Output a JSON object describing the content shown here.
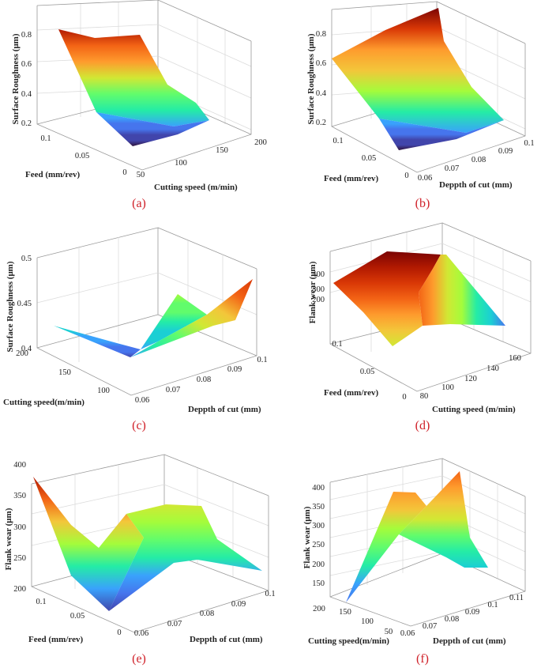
{
  "chart_data": [
    {
      "type": "surface",
      "caption": "(a)",
      "zlabel": "Surface Roughness (μm)",
      "xlabel": "Feed (mm/rev)",
      "ylabel": "Cutting speed (m/min)",
      "x_ticks": [
        "0",
        "0.05",
        "0.1"
      ],
      "y_ticks": [
        "50",
        "100",
        "150",
        "200"
      ],
      "z_ticks": [
        "0.2",
        "0.4",
        "0.6",
        "0.8"
      ],
      "xlim": [
        0,
        0.12
      ],
      "ylim": [
        50,
        200
      ],
      "zlim": [
        0.15,
        0.9
      ],
      "colormap": "turbo"
    },
    {
      "type": "surface",
      "caption": "(b)",
      "zlabel": "Surface Roughness (μm)",
      "xlabel": "Feed (mm/rev)",
      "ylabel": "Deppth of cut (mm)",
      "x_ticks": [
        "0",
        "0.05",
        "0.1"
      ],
      "y_ticks": [
        "0.06",
        "0.07",
        "0.08",
        "0.09",
        "0.1"
      ],
      "z_ticks": [
        "0.2",
        "0.4",
        "0.6",
        "0.8"
      ],
      "xlim": [
        0,
        0.12
      ],
      "ylim": [
        0.06,
        0.1
      ],
      "zlim": [
        0.15,
        0.9
      ],
      "colormap": "turbo"
    },
    {
      "type": "surface",
      "caption": "(c)",
      "zlabel": "Surface Roughness (μm)",
      "xlabel": "Cutting speed(m/min)",
      "ylabel": "Deppth of cut (mm)",
      "x_ticks": [
        "100",
        "150",
        "200"
      ],
      "y_ticks": [
        "0.06",
        "0.07",
        "0.08",
        "0.09",
        "0.1"
      ],
      "z_ticks": [
        "0.4",
        "0.45",
        "0.5"
      ],
      "xlim": [
        50,
        200
      ],
      "ylim": [
        0.06,
        0.1
      ],
      "zlim": [
        0.4,
        0.5
      ],
      "colormap": "turbo"
    },
    {
      "type": "surface",
      "caption": "(d)",
      "zlabel": "Flank wear (μm)",
      "xlabel": "Feed (mm/rev)",
      "ylabel": "Cutting speed (m/min)",
      "x_ticks": [
        "0",
        "0.05",
        "0.1"
      ],
      "y_ticks": [
        "80",
        "100",
        "120",
        "140",
        "160"
      ],
      "z_ticks": [
        "200",
        "300",
        "400"
      ],
      "xlim": [
        0,
        0.12
      ],
      "ylim": [
        80,
        160
      ],
      "zlim": [
        150,
        420
      ],
      "colormap": "turbo"
    },
    {
      "type": "surface",
      "caption": "(e)",
      "zlabel": "Flank wear (μm)",
      "xlabel": "Feed (mm/rev)",
      "ylabel": "Deppth of cut (mm)",
      "x_ticks": [
        "0",
        "0.05",
        "0.1"
      ],
      "y_ticks": [
        "0.06",
        "0.07",
        "0.08",
        "0.09",
        "0.1"
      ],
      "z_ticks": [
        "200",
        "250",
        "300",
        "350",
        "400"
      ],
      "xlim": [
        0,
        0.12
      ],
      "ylim": [
        0.06,
        0.1
      ],
      "zlim": [
        190,
        440
      ],
      "colormap": "turbo"
    },
    {
      "type": "surface",
      "caption": "(f)",
      "zlabel": "Flank wear (μm)",
      "xlabel": "Cutting speed(m/min)",
      "ylabel": "Deppth of cut (mm)",
      "x_ticks": [
        "50",
        "100",
        "150",
        "200"
      ],
      "y_ticks": [
        "0.06",
        "0.07",
        "0.08",
        "0.09",
        "0.1",
        "0.11"
      ],
      "z_ticks": [
        "150",
        "200",
        "250",
        "300",
        "350",
        "400"
      ],
      "xlim": [
        50,
        200
      ],
      "ylim": [
        0.06,
        0.11
      ],
      "zlim": [
        110,
        430
      ],
      "colormap": "turbo"
    }
  ]
}
